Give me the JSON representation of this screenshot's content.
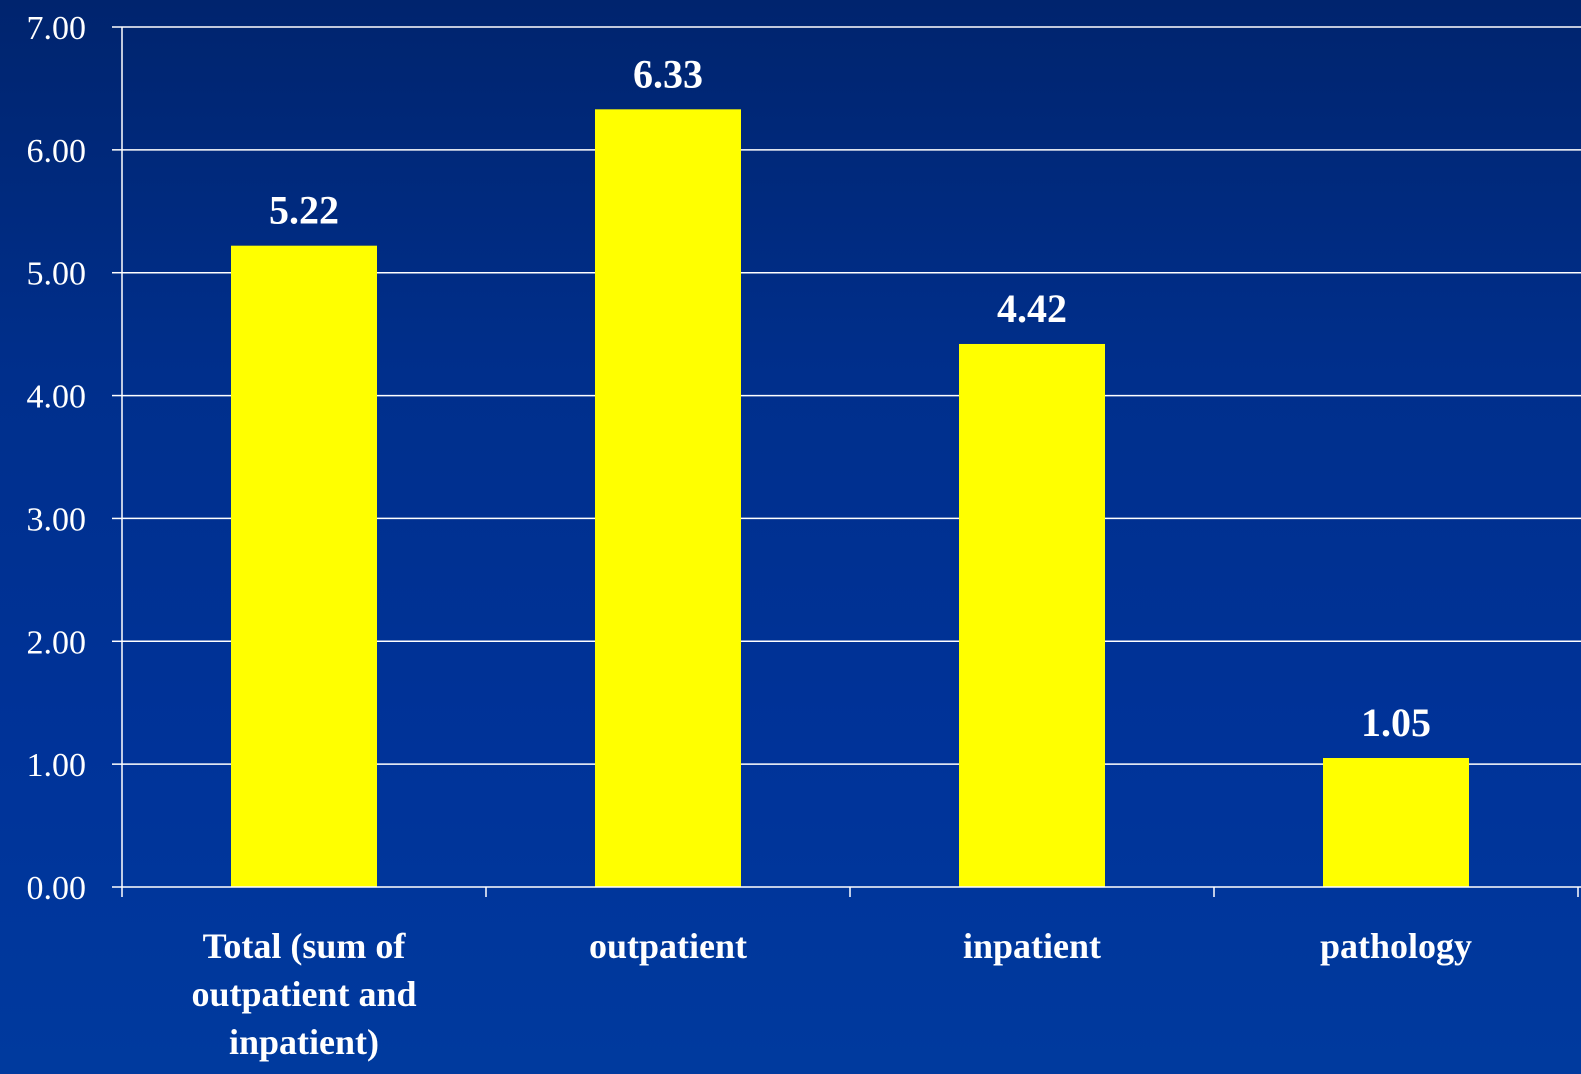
{
  "chart_data": {
    "type": "bar",
    "categories": [
      [
        "Total (sum of",
        "outpatient and",
        "inpatient)"
      ],
      [
        "outpatient"
      ],
      [
        "inpatient"
      ],
      [
        "pathology"
      ]
    ],
    "values": [
      5.22,
      6.33,
      4.42,
      1.05
    ],
    "value_labels": [
      "5.22",
      "6.33",
      "4.42",
      "1.05"
    ],
    "ylim": [
      0,
      7
    ],
    "yticks": [
      "0.00",
      "1.00",
      "2.00",
      "3.00",
      "4.00",
      "5.00",
      "6.00",
      "7.00"
    ],
    "grid": true,
    "bar_color": "#ffff00",
    "grid_color": "#ffffff",
    "title": "",
    "xlabel": "",
    "ylabel": ""
  }
}
